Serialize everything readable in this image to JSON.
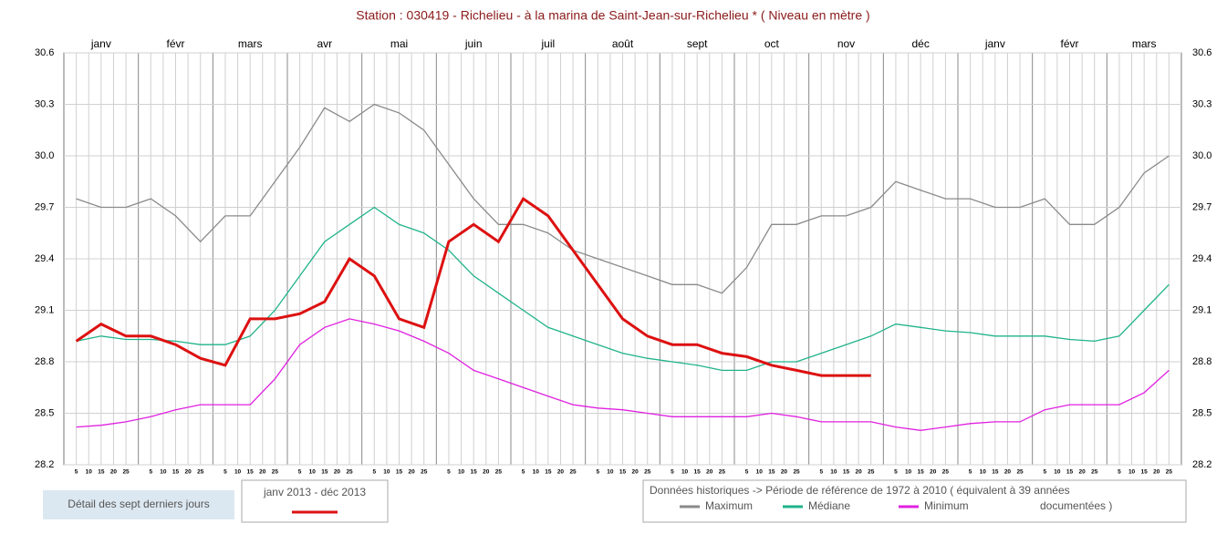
{
  "chart_data": {
    "type": "line",
    "title": "Station : 030419  -  Richelieu - à la marina de Saint-Jean-sur-Richelieu *  ( Niveau en mètre )",
    "categories": [
      null,
      "janv",
      null,
      null,
      "févr",
      null,
      null,
      "mars",
      null,
      null,
      "avr",
      null,
      null,
      "mai",
      null,
      null,
      "juin",
      null,
      null,
      "juil",
      null,
      null,
      "août",
      null,
      null,
      "sept",
      null,
      null,
      "oct",
      null,
      null,
      "nov",
      null,
      null,
      "déc",
      null,
      null,
      "janv",
      null,
      null,
      "févr",
      null,
      null,
      "mars",
      null
    ],
    "day_ticks": [
      5,
      10,
      15,
      20,
      25
    ],
    "ylim": [
      28.2,
      30.6
    ],
    "yticks": [
      {
        "value": 28.2,
        "label": "28.2"
      },
      {
        "value": 28.5,
        "label": "28.5"
      },
      {
        "value": 28.8,
        "label": "28.8"
      },
      {
        "value": 29.1,
        "label": "29.1"
      },
      {
        "value": 29.4,
        "label": "29.4"
      },
      {
        "value": 29.7,
        "label": "29.7"
      },
      {
        "value": 30.0,
        "label": "30.0"
      },
      {
        "value": 30.3,
        "label": "30.3"
      },
      {
        "value": 30.6,
        "label": "30.6"
      }
    ],
    "grid": true,
    "series": [
      {
        "name": "Maximum",
        "color": "#8a8a8a",
        "values": [
          29.75,
          29.7,
          29.7,
          29.75,
          29.65,
          29.5,
          29.65,
          29.65,
          29.85,
          30.05,
          30.28,
          30.2,
          30.3,
          30.25,
          30.15,
          29.95,
          29.75,
          29.6,
          29.6,
          29.55,
          29.45,
          29.4,
          29.35,
          29.3,
          29.25,
          29.25,
          29.2,
          29.35,
          29.6,
          29.6,
          29.65,
          29.65,
          29.7,
          29.85,
          29.8,
          29.75,
          29.75,
          29.7,
          29.7,
          29.75,
          29.6,
          29.6,
          29.7,
          29.9,
          30.0
        ]
      },
      {
        "name": "Médiane",
        "color": "#1fb38a",
        "values": [
          28.92,
          28.95,
          28.93,
          28.93,
          28.92,
          28.9,
          28.9,
          28.95,
          29.1,
          29.3,
          29.5,
          29.6,
          29.7,
          29.6,
          29.55,
          29.45,
          29.3,
          29.2,
          29.1,
          29.0,
          28.95,
          28.9,
          28.85,
          28.82,
          28.8,
          28.78,
          28.75,
          28.75,
          28.8,
          28.8,
          28.85,
          28.9,
          28.95,
          29.02,
          29.0,
          28.98,
          28.97,
          28.95,
          28.95,
          28.95,
          28.93,
          28.92,
          28.95,
          29.1,
          29.25
        ]
      },
      {
        "name": "Minimum",
        "color": "#e020e0",
        "values": [
          28.42,
          28.43,
          28.45,
          28.48,
          28.52,
          28.55,
          28.55,
          28.55,
          28.7,
          28.9,
          29.0,
          29.05,
          29.02,
          28.98,
          28.92,
          28.85,
          28.75,
          28.7,
          28.65,
          28.6,
          28.55,
          28.53,
          28.52,
          28.5,
          28.48,
          28.48,
          28.48,
          28.48,
          28.5,
          28.48,
          28.45,
          28.45,
          28.45,
          28.42,
          28.4,
          28.42,
          28.44,
          28.45,
          28.45,
          28.52,
          28.55,
          28.55,
          28.55,
          28.62,
          28.75
        ]
      },
      {
        "name": "janv 2013 - déc 2013",
        "color": "#dd1111",
        "values": [
          28.92,
          29.02,
          28.95,
          28.95,
          28.9,
          28.82,
          28.78,
          29.05,
          29.05,
          29.08,
          29.15,
          29.4,
          29.3,
          29.05,
          29.0,
          29.5,
          29.6,
          29.5,
          29.75,
          29.65,
          29.45,
          29.25,
          29.05,
          28.95,
          28.9,
          28.9,
          28.85,
          28.83,
          28.78,
          28.75,
          28.72,
          28.72,
          28.72,
          null,
          null,
          null,
          null,
          null,
          null,
          null,
          null,
          null,
          null,
          null,
          null
        ]
      }
    ],
    "button": "Détail des sept derniers jours",
    "historical_title": "Données historiques -> Période de référence  de 1972 à 2010   ( équivalent à 39 années",
    "historical_title_2": "documentées )"
  }
}
